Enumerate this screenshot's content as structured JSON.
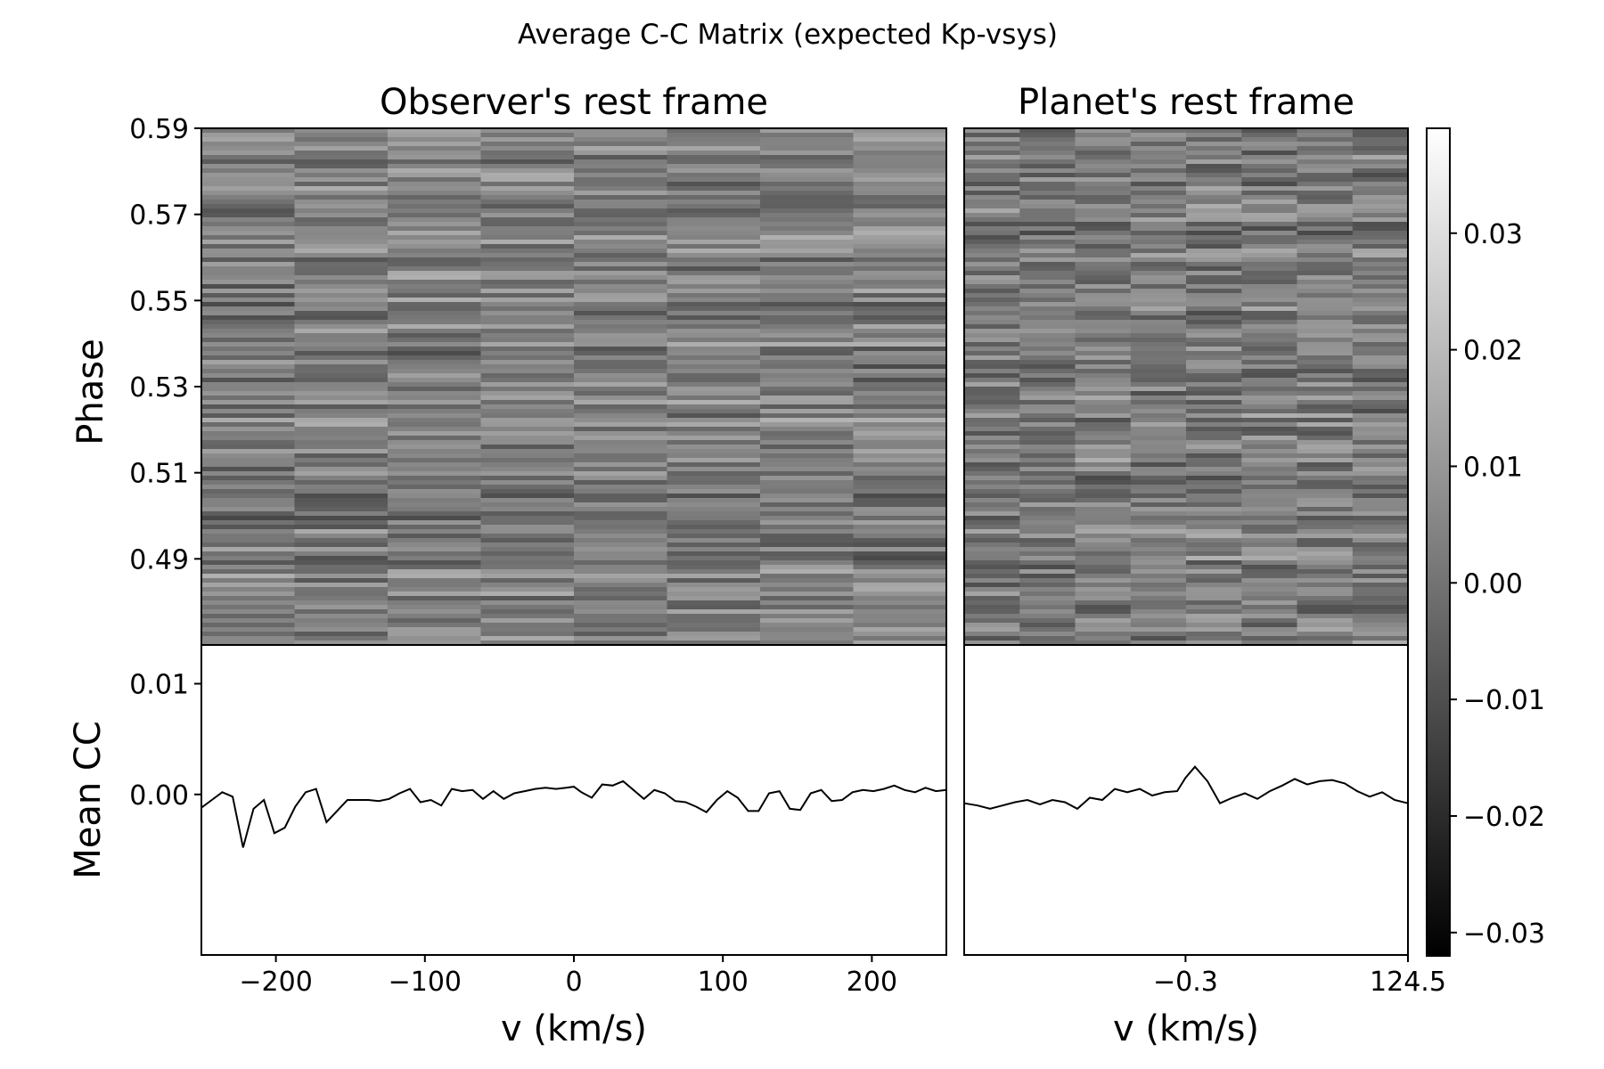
{
  "chart_data": {
    "title": "Average C-C Matrix (expected Kp-vsys)",
    "type": "heatmap",
    "colormap": "gray",
    "colorbar": {
      "range": [
        -0.032,
        0.039
      ],
      "ticks": [
        0.03,
        0.02,
        0.01,
        0.0,
        -0.01,
        -0.02,
        -0.03
      ],
      "tick_labels": [
        "0.03",
        "0.02",
        "0.01",
        "0.00",
        "−0.01",
        "−0.02",
        "−0.03"
      ]
    },
    "panels": [
      {
        "id": "observer",
        "title": "Observer's rest frame",
        "xlabel": "v (km/s)",
        "ylabel": "Phase",
        "xlim": [
          -250,
          250
        ],
        "ylim": [
          0.47,
          0.59
        ],
        "xticks": [
          -200,
          -100,
          0,
          100,
          200
        ],
        "xtick_labels": [
          "−200",
          "−100",
          "0",
          "100",
          "200"
        ],
        "yticks": [
          0.59,
          0.57,
          0.55,
          0.53,
          0.51,
          0.49
        ],
        "ytick_labels": [
          "0.59",
          "0.57",
          "0.55",
          "0.53",
          "0.51",
          "0.49"
        ]
      },
      {
        "id": "planet",
        "title": "Planet's rest frame",
        "xlabel": "v (km/s)",
        "xlim": [
          -124.5,
          124.5
        ],
        "xticks": [
          -0.3,
          124.5
        ],
        "xtick_labels": [
          "−0.3",
          "124.5"
        ]
      }
    ],
    "mean_cc": {
      "ylabel": "Mean CC",
      "ylim": [
        -0.0145,
        0.0135
      ],
      "yticks": [
        0.01,
        0.0
      ],
      "ytick_labels": [
        "0.01",
        "0.00"
      ],
      "observer": {
        "x": [
          -250,
          -243,
          -236,
          -229,
          -222,
          -215,
          -208,
          -201,
          -194,
          -187,
          -180,
          -173,
          -166,
          -152,
          -138,
          -131,
          -124,
          -117,
          -110,
          -103,
          -96,
          -89,
          -82,
          -75,
          -68,
          -61,
          -54,
          -47,
          -40,
          -33,
          -26,
          -19,
          -12,
          -5,
          0,
          5,
          12,
          19,
          26,
          33,
          40,
          47,
          54,
          61,
          68,
          75,
          82,
          89,
          96,
          103,
          110,
          117,
          124,
          131,
          138,
          145,
          152,
          159,
          166,
          173,
          180,
          187,
          194,
          201,
          208,
          215,
          222,
          229,
          236,
          243,
          250
        ],
        "y": [
          -0.0012,
          -0.0005,
          0.0002,
          -0.0002,
          -0.0048,
          -0.0013,
          -0.0005,
          -0.0035,
          -0.003,
          -0.0011,
          0.0002,
          0.0005,
          -0.0025,
          -0.0005,
          -0.0005,
          -0.0006,
          -0.0004,
          0.0001,
          0.0005,
          -0.0007,
          -0.0005,
          -0.001,
          0.0005,
          0.0003,
          0.0004,
          -0.0004,
          0.0003,
          -0.0004,
          0.0001,
          0.0003,
          0.0005,
          0.0006,
          0.0005,
          0.0006,
          0.0007,
          0.0002,
          -0.0003,
          0.0009,
          0.0008,
          0.0012,
          0.0004,
          -0.0004,
          0.0004,
          0.0001,
          -0.0006,
          -0.0007,
          -0.0011,
          -0.0016,
          -0.0005,
          0.0003,
          -0.0003,
          -0.0015,
          -0.0015,
          0.0001,
          0.0003,
          -0.0013,
          -0.0014,
          0.0001,
          0.0004,
          -0.0006,
          -0.0005,
          0.0002,
          0.0004,
          0.0003,
          0.0005,
          0.0008,
          0.0004,
          0.0002,
          0.0006,
          0.0003,
          0.0004
        ]
      },
      "planet": {
        "x": [
          -124.5,
          -117,
          -110,
          -103,
          -96,
          -89,
          -82,
          -75,
          -68,
          -61,
          -54,
          -47,
          -40,
          -33,
          -26,
          -19,
          -12,
          -5,
          -0.3,
          5,
          12,
          19,
          26,
          33,
          40,
          47,
          54,
          61,
          68,
          75,
          82,
          89,
          96,
          103,
          110,
          117,
          124.5
        ],
        "y": [
          -0.0008,
          -0.001,
          -0.0013,
          -0.001,
          -0.0007,
          -0.0005,
          -0.0009,
          -0.0005,
          -0.0007,
          -0.0013,
          -0.0003,
          -0.0005,
          0.0005,
          0.0002,
          0.0005,
          -0.0001,
          0.0002,
          0.0003,
          0.0015,
          0.0025,
          0.0012,
          -0.0008,
          -0.0003,
          0.0001,
          -0.0004,
          0.0003,
          0.0008,
          0.0014,
          0.0009,
          0.0012,
          0.0013,
          0.001,
          0.0003,
          -0.0002,
          0.0002,
          -0.0005,
          -0.0008
        ]
      }
    }
  }
}
